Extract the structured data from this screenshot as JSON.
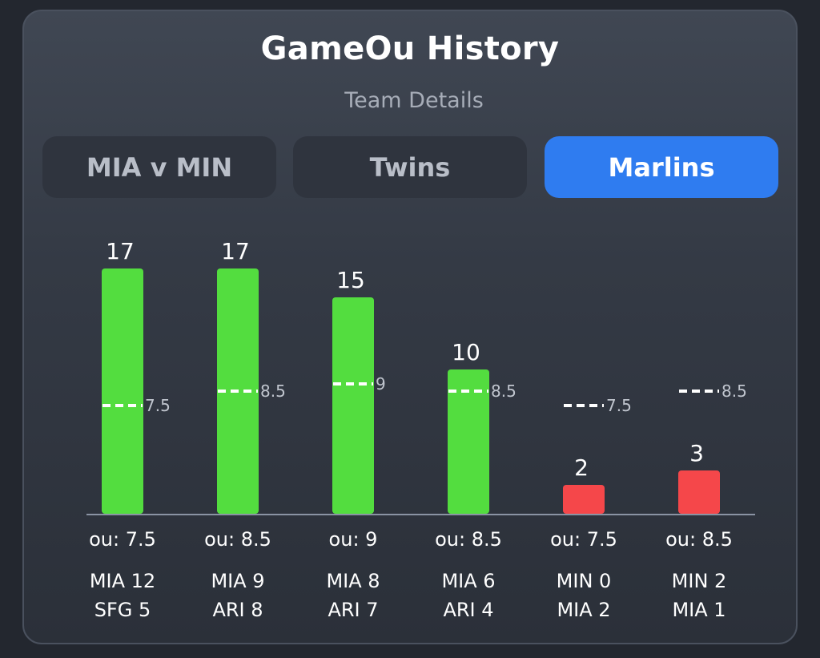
{
  "header": {
    "title": "GameOu History",
    "subtitle": "Team Details"
  },
  "tabs": [
    {
      "label": "MIA v MIN",
      "active": false
    },
    {
      "label": "Twins",
      "active": false
    },
    {
      "label": "Marlins",
      "active": true
    }
  ],
  "colors": {
    "over": "#53dd3f",
    "under": "#f5474a",
    "accent": "#2f7cf0"
  },
  "chart_data": {
    "type": "bar",
    "categories": [
      "MIA 12 SFG 5",
      "MIA 9 ARI 8",
      "MIA 8 ARI 7",
      "MIA 6 ARI 4",
      "MIN 0 MIA 2",
      "MIN 2 MIA 1"
    ],
    "values": [
      17,
      17,
      15,
      10,
      2,
      3
    ],
    "ou_lines": [
      7.5,
      8.5,
      9,
      8.5,
      7.5,
      8.5
    ],
    "ou_labels": [
      "ou: 7.5",
      "ou: 8.5",
      "ou: 9",
      "ou: 8.5",
      "ou: 7.5",
      "ou: 8.5"
    ],
    "ou_markers": [
      "7.5",
      "8.5",
      "9",
      "8.5",
      "7.5",
      "8.5"
    ],
    "scores": [
      [
        "MIA 12",
        "SFG 5"
      ],
      [
        "MIA 9",
        "ARI 8"
      ],
      [
        "MIA 8",
        "ARI 7"
      ],
      [
        "MIA 6",
        "ARI 4"
      ],
      [
        "MIN 0",
        "MIA 2"
      ],
      [
        "MIN 2",
        "MIA 1"
      ]
    ],
    "result": [
      "over",
      "over",
      "over",
      "over",
      "under",
      "under"
    ],
    "ylim": [
      0,
      17.5
    ],
    "grid": false,
    "legend": "none"
  }
}
